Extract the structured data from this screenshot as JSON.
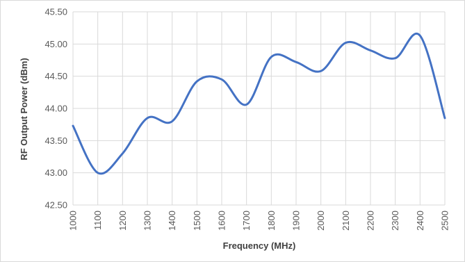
{
  "chart_data": {
    "type": "line",
    "title": "",
    "xlabel": "Frequency (MHz)",
    "ylabel": "RF Output Power (dBm)",
    "x": [
      1000,
      1100,
      1200,
      1300,
      1400,
      1500,
      1600,
      1700,
      1800,
      1900,
      2000,
      2100,
      2200,
      2300,
      2400,
      2500
    ],
    "x_tick_labels": [
      "1000",
      "1100",
      "1200",
      "1300",
      "1400",
      "1500",
      "1600",
      "1700",
      "1800",
      "1900",
      "2000",
      "2100",
      "2200",
      "2300",
      "2400",
      "2500"
    ],
    "y_tick_labels": [
      "42.50",
      "43.00",
      "43.50",
      "44.00",
      "44.50",
      "45.00",
      "45.50"
    ],
    "y_ticks": [
      42.5,
      43.0,
      43.5,
      44.0,
      44.5,
      45.0,
      45.5
    ],
    "ylim": [
      42.5,
      45.5
    ],
    "xlim": [
      1000,
      2500
    ],
    "grid": "vertical-and-horizontal",
    "legend": "none",
    "smooth": true,
    "series": [
      {
        "color": "#4472c4",
        "values": [
          43.73,
          43.0,
          43.3,
          43.85,
          43.8,
          44.42,
          44.45,
          44.06,
          44.8,
          44.72,
          44.58,
          45.02,
          44.9,
          44.78,
          45.13,
          43.85
        ]
      }
    ]
  }
}
